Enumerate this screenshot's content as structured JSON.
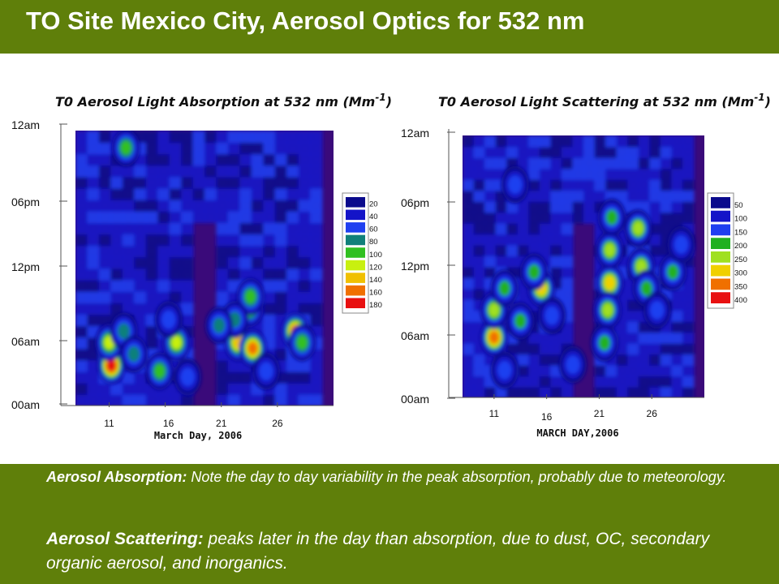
{
  "slide": {
    "title": "TO Site Mexico City, Aerosol Optics for 532 nm",
    "notes": [
      {
        "label": "Aerosol Absorption:",
        "text": " Note the  day to day variability in the peak absorption, probably due to meteorology."
      },
      {
        "label": "Aerosol Scattering:",
        "text": " peaks later in the day than absorption, due to dust, OC, secondary organic aerosol, and inorganics."
      }
    ]
  },
  "chart_data": [
    {
      "type": "heatmap",
      "title": "T0 Aerosol Light Absorption at 532 nm (Mm",
      "title_exponent": "-1",
      "title_close": ")",
      "xlabel": "March Day, 2006",
      "x_ticks": [
        "11",
        "16",
        "21",
        "26"
      ],
      "x_tick_values": [
        11,
        16,
        21,
        26
      ],
      "xlim": [
        8,
        31
      ],
      "y_ticks": [
        "12am",
        "06pm",
        "12pm",
        "06am",
        "00am"
      ],
      "y_tick_values": [
        24,
        18,
        12,
        6,
        0
      ],
      "ylim": [
        0,
        24
      ],
      "legend": {
        "labels": [
          "20",
          "40",
          "60",
          "80",
          "100",
          "120",
          "140",
          "160",
          "180"
        ],
        "colors": [
          "#0a0a8c",
          "#1414c8",
          "#1f3ff0",
          "#10807a",
          "#30c020",
          "#c8f010",
          "#f0c000",
          "#f07000",
          "#e81010"
        ],
        "placement": "right"
      },
      "background_color": "#3a0a7a",
      "hotspots": [
        {
          "day": 11.2,
          "hour": 3.5,
          "value": 180
        },
        {
          "day": 11.0,
          "hour": 5.5,
          "value": 120
        },
        {
          "day": 12.3,
          "hour": 6.5,
          "value": 70
        },
        {
          "day": 13.2,
          "hour": 4.5,
          "value": 80
        },
        {
          "day": 15.5,
          "hour": 3.0,
          "value": 90
        },
        {
          "day": 17.0,
          "hour": 5.5,
          "value": 120
        },
        {
          "day": 16.3,
          "hour": 7.5,
          "value": 60
        },
        {
          "day": 22.5,
          "hour": 5.5,
          "value": 140
        },
        {
          "day": 23.8,
          "hour": 5.0,
          "value": 150
        },
        {
          "day": 23.5,
          "hour": 8.5,
          "value": 120
        },
        {
          "day": 23.6,
          "hour": 9.5,
          "value": 90
        },
        {
          "day": 22.2,
          "hour": 7.5,
          "value": 80
        },
        {
          "day": 20.8,
          "hour": 7.0,
          "value": 70
        },
        {
          "day": 27.6,
          "hour": 6.5,
          "value": 150
        },
        {
          "day": 28.2,
          "hour": 5.5,
          "value": 100
        },
        {
          "day": 12.5,
          "hour": 22.5,
          "value": 90
        },
        {
          "day": 18.0,
          "hour": 2.5,
          "value": 60
        },
        {
          "day": 25.0,
          "hour": 3.0,
          "value": 50
        }
      ]
    },
    {
      "type": "heatmap",
      "title": "T0 Aerosol Light Scattering at 532 nm (Mm",
      "title_exponent": "-1",
      "title_close": ")",
      "xlabel": "MARCH DAY,2006",
      "x_ticks": [
        "11",
        "16",
        "21",
        "26"
      ],
      "x_tick_values": [
        11,
        16,
        21,
        26
      ],
      "xlim": [
        8,
        31
      ],
      "y_ticks": [
        "12am",
        "06pm",
        "12pm",
        "06am",
        "00am"
      ],
      "y_tick_values": [
        24,
        18,
        12,
        6,
        0
      ],
      "ylim": [
        0,
        24
      ],
      "legend": {
        "labels": [
          "50",
          "100",
          "150",
          "200",
          "250",
          "300",
          "350",
          "400"
        ],
        "colors": [
          "#0a0a8c",
          "#1414c8",
          "#1f3ff0",
          "#20b020",
          "#a0e020",
          "#f0d000",
          "#f07000",
          "#e81010"
        ],
        "placement": "right"
      },
      "background_color": "#3a0a7a",
      "hotspots": [
        {
          "day": 11.0,
          "hour": 5.5,
          "value": 360
        },
        {
          "day": 11.0,
          "hour": 8.0,
          "value": 250
        },
        {
          "day": 12.0,
          "hour": 10.0,
          "value": 200
        },
        {
          "day": 15.5,
          "hour": 10.0,
          "value": 300
        },
        {
          "day": 14.8,
          "hour": 11.5,
          "value": 220
        },
        {
          "day": 13.5,
          "hour": 7.0,
          "value": 180
        },
        {
          "day": 16.5,
          "hour": 7.5,
          "value": 160
        },
        {
          "day": 22.0,
          "hour": 10.5,
          "value": 300
        },
        {
          "day": 21.8,
          "hour": 8.0,
          "value": 260
        },
        {
          "day": 22.0,
          "hour": 13.5,
          "value": 230
        },
        {
          "day": 22.2,
          "hour": 16.5,
          "value": 200
        },
        {
          "day": 21.5,
          "hour": 5.0,
          "value": 180
        },
        {
          "day": 25.0,
          "hour": 12.0,
          "value": 240
        },
        {
          "day": 24.7,
          "hour": 15.5,
          "value": 230
        },
        {
          "day": 25.5,
          "hour": 10.0,
          "value": 220
        },
        {
          "day": 26.5,
          "hour": 8.0,
          "value": 170
        },
        {
          "day": 28.0,
          "hour": 11.5,
          "value": 190
        },
        {
          "day": 28.8,
          "hour": 14.0,
          "value": 160
        },
        {
          "day": 13.0,
          "hour": 19.5,
          "value": 160
        },
        {
          "day": 18.5,
          "hour": 3.0,
          "value": 160
        },
        {
          "day": 12.0,
          "hour": 2.5,
          "value": 150
        }
      ]
    }
  ]
}
